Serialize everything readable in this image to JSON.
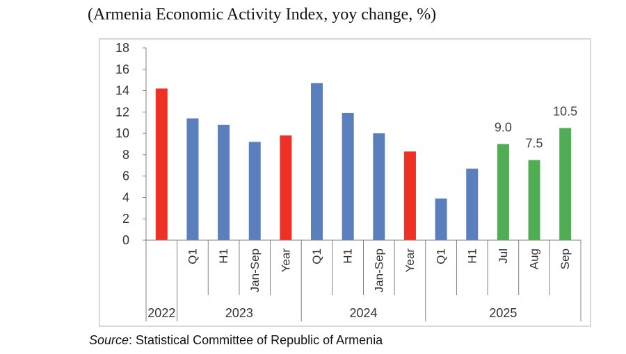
{
  "title": "(Armenia Economic Activity Index, yoy change, %)",
  "source": {
    "label": "Source",
    "text": ": Statistical Committee of Republic of Armenia"
  },
  "colors": {
    "year": "#ee3124",
    "period": "#5b7fbd",
    "month": "#4fae53",
    "axis": "#808080",
    "frame": "#bfbfbf"
  },
  "chart_data": {
    "type": "bar",
    "title": "(Armenia Economic Activity Index, yoy change, %)",
    "xlabel": "",
    "ylabel": "",
    "ylim": [
      0,
      18
    ],
    "yticks": [
      0,
      2,
      4,
      6,
      8,
      10,
      12,
      14,
      16,
      18
    ],
    "grid": false,
    "categories": [
      "",
      "Q1",
      "H1",
      "Jan-Sep",
      "Year",
      "Q1",
      "H1",
      "Jan-Sep",
      "Year",
      "Q1",
      "H1",
      "Jul",
      "Aug",
      "Sep"
    ],
    "values": [
      14.2,
      11.4,
      10.8,
      9.2,
      9.8,
      14.7,
      11.9,
      10.0,
      8.3,
      3.9,
      6.7,
      9.0,
      7.5,
      10.5
    ],
    "bar_kind": [
      "year",
      "period",
      "period",
      "period",
      "year",
      "period",
      "period",
      "period",
      "year",
      "period",
      "period",
      "month",
      "month",
      "month"
    ],
    "data_labels": [
      "",
      "",
      "",
      "",
      "",
      "",
      "",
      "",
      "",
      "",
      "",
      "9.0",
      "7.5",
      "10.5"
    ],
    "groups": [
      {
        "label": "2022",
        "start": 0,
        "end": 0
      },
      {
        "label": "2023",
        "start": 1,
        "end": 4
      },
      {
        "label": "2024",
        "start": 5,
        "end": 8
      },
      {
        "label": "2025",
        "start": 9,
        "end": 13
      }
    ]
  }
}
